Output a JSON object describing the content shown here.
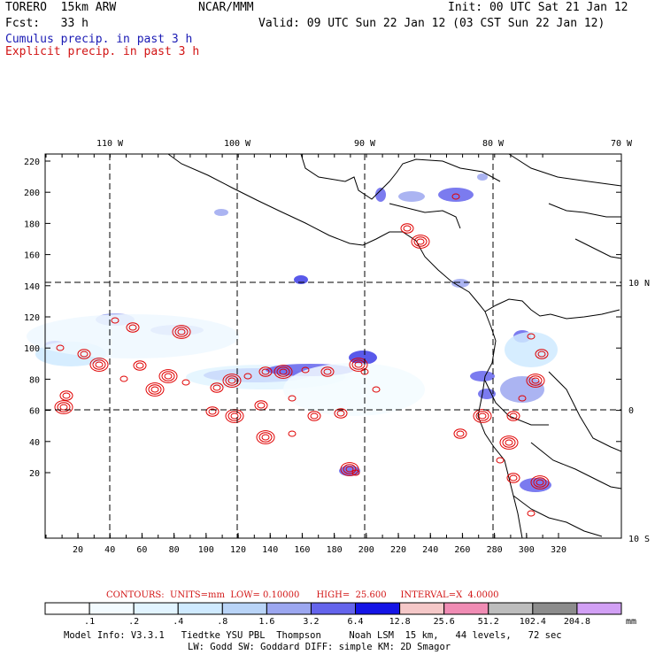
{
  "header": {
    "model": "TORERO  15km ARW",
    "org": "NCAR/MMM",
    "init": "Init: 00 UTC Sat 21 Jan 12",
    "fcst": "Fcst:   33 h",
    "valid": "Valid: 09 UTC Sun 22 Jan 12 (03 CST Sun 22 Jan 12)"
  },
  "legend": {
    "cumulus": "Cumulus precip. in past 3 h",
    "explicit": "Explicit precip. in past 3 h",
    "cumulus_color": "#1a1ab4",
    "explicit_color": "#d21414"
  },
  "map": {
    "lon_labels": [
      "110 W",
      "100 W",
      "90 W",
      "80 W",
      "70 W"
    ],
    "lat_labels": [
      "10 N",
      "0",
      "10 S"
    ],
    "x_ticks": [
      "20",
      "40",
      "60",
      "80",
      "100",
      "120",
      "140",
      "160",
      "180",
      "200",
      "220",
      "240",
      "260",
      "280",
      "300",
      "320"
    ],
    "y_ticks": [
      "220",
      "200",
      "180",
      "160",
      "140",
      "120",
      "100",
      "80",
      "60",
      "40",
      "20"
    ]
  },
  "contour_info": {
    "text": "CONTOURS:  UNITS=mm  LOW= 0.10000      HIGH=  25.600     INTERVAL=X  4.0000"
  },
  "colorbar": {
    "unit": "mm",
    "labels": [
      ".1",
      ".2",
      ".4",
      ".8",
      "1.6",
      "3.2",
      "6.4",
      "12.8",
      "25.6",
      "51.2",
      "102.4",
      "204.8"
    ],
    "colors": [
      "#ffffff",
      "#f3fbff",
      "#e2f4ff",
      "#cfeaff",
      "#b9d4f7",
      "#9ca7f0",
      "#6464ec",
      "#1414e6",
      "#f5c8c8",
      "#f08cb4",
      "#bdbdbd",
      "#8c8c8c",
      "#d2a0f5"
    ]
  },
  "footer": {
    "line1": "Model Info: V3.3.1   Tiedtke YSU PBL  Thompson     Noah LSM  15 km,   44 levels,   72 sec",
    "line2": "LW: Godd SW: Goddard DIFF: simple KM: 2D Smagor"
  }
}
